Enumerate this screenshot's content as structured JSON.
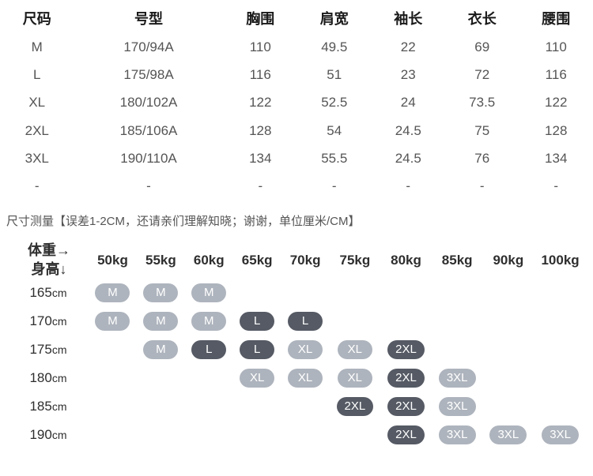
{
  "size_table": {
    "columns": [
      "尺码",
      "号型",
      "胸围",
      "肩宽",
      "袖长",
      "衣长",
      "腰围"
    ],
    "rows": [
      [
        "M",
        "170/94A",
        "110",
        "49.5",
        "22",
        "69",
        "110"
      ],
      [
        "L",
        "175/98A",
        "116",
        "51",
        "23",
        "72",
        "116"
      ],
      [
        "XL",
        "180/102A",
        "122",
        "52.5",
        "24",
        "73.5",
        "122"
      ],
      [
        "2XL",
        "185/106A",
        "128",
        "54",
        "24.5",
        "75",
        "128"
      ],
      [
        "3XL",
        "190/110A",
        "134",
        "55.5",
        "24.5",
        "76",
        "134"
      ],
      [
        "-",
        "-",
        "-",
        "-",
        "-",
        "-",
        "-"
      ]
    ],
    "header_color": "#1a1a1a",
    "cell_color": "#555555",
    "header_fontsize": 18,
    "cell_fontsize": 17,
    "background_color": "#ffffff"
  },
  "note_text": "尺寸测量【误差1-2CM，还请亲们理解知晓；谢谢，单位厘米/CM】",
  "rec_chart": {
    "corner_top": "体重→",
    "corner_bottom": "身高↓",
    "weights": [
      "50kg",
      "55kg",
      "60kg",
      "65kg",
      "70kg",
      "75kg",
      "80kg",
      "85kg",
      "90kg",
      "100kg"
    ],
    "heights": [
      "165",
      "170",
      "175",
      "180",
      "185",
      "190"
    ],
    "height_unit": "cm",
    "cells": [
      [
        {
          "t": "M",
          "c": "light"
        },
        {
          "t": "M",
          "c": "light"
        },
        {
          "t": "M",
          "c": "light"
        },
        null,
        null,
        null,
        null,
        null,
        null,
        null
      ],
      [
        {
          "t": "M",
          "c": "light"
        },
        {
          "t": "M",
          "c": "light"
        },
        {
          "t": "M",
          "c": "light"
        },
        {
          "t": "L",
          "c": "dark"
        },
        {
          "t": "L",
          "c": "dark"
        },
        null,
        null,
        null,
        null,
        null
      ],
      [
        null,
        {
          "t": "M",
          "c": "light"
        },
        {
          "t": "L",
          "c": "dark"
        },
        {
          "t": "L",
          "c": "dark"
        },
        {
          "t": "XL",
          "c": "light"
        },
        {
          "t": "XL",
          "c": "light"
        },
        {
          "t": "2XL",
          "c": "dark"
        },
        null,
        null,
        null
      ],
      [
        null,
        null,
        null,
        {
          "t": "XL",
          "c": "light"
        },
        {
          "t": "XL",
          "c": "light"
        },
        {
          "t": "XL",
          "c": "light"
        },
        {
          "t": "2XL",
          "c": "dark"
        },
        {
          "t": "3XL",
          "c": "light"
        },
        null,
        null
      ],
      [
        null,
        null,
        null,
        null,
        null,
        {
          "t": "2XL",
          "c": "dark"
        },
        {
          "t": "2XL",
          "c": "dark"
        },
        {
          "t": "3XL",
          "c": "light"
        },
        null,
        null
      ],
      [
        null,
        null,
        null,
        null,
        null,
        null,
        {
          "t": "2XL",
          "c": "dark"
        },
        {
          "t": "3XL",
          "c": "light"
        },
        {
          "t": "3XL",
          "c": "light"
        },
        {
          "t": "3XL",
          "c": "light"
        }
      ]
    ],
    "pill_light_bg": "#aeb4bd",
    "pill_dark_bg": "#555a64",
    "pill_text_color": "#ffffff",
    "header_fontsize": 18,
    "weight_fontsize": 17,
    "height_fontsize": 17,
    "pill_fontsize": 15,
    "pill_radius": 12
  }
}
